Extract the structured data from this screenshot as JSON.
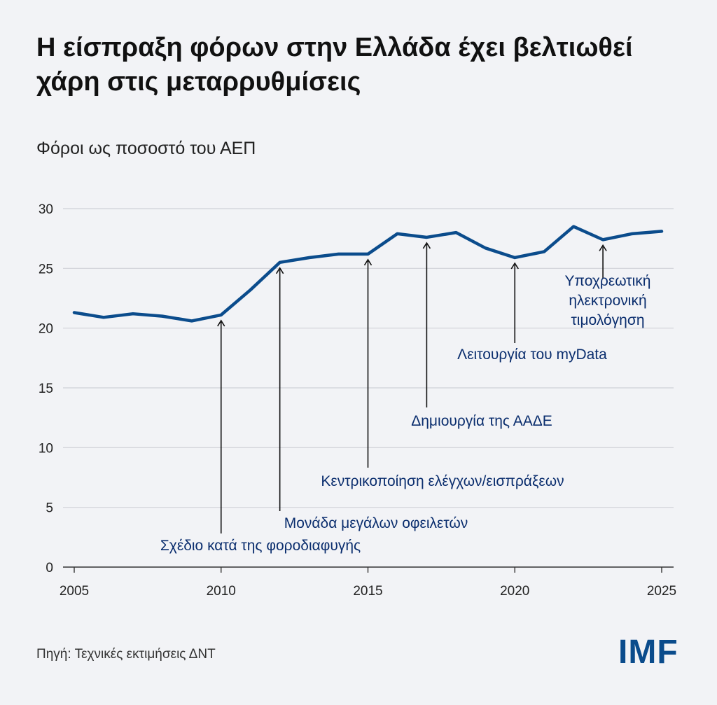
{
  "title": "Η είσπραξη φόρων στην Ελλάδα έχει βελτιωθεί χάρη στις μεταρρυθμίσεις",
  "source": "Πηγή: Τεχνικές εκτιμήσεις ΔΝΤ",
  "logo_text": "IMF",
  "colors": {
    "line": "#0b4c8c",
    "annotation_text": "#0b2e6e",
    "grid": "#cfd2d8",
    "background": "#f2f3f6"
  },
  "chart_data": {
    "type": "line",
    "ylabel": "Φόροι ως ποσοστό του ΑΕΠ",
    "xlim": [
      2005,
      2025
    ],
    "ylim": [
      0,
      30
    ],
    "x_ticks": [
      "2005",
      "2010",
      "2015",
      "2020",
      "2025"
    ],
    "y_ticks": [
      "0",
      "5",
      "10",
      "15",
      "20",
      "25",
      "30"
    ],
    "grid": "horizontal",
    "series": [
      {
        "x": [
          2005,
          2006,
          2007,
          2008,
          2009,
          2010,
          2011,
          2012,
          2013,
          2014,
          2015,
          2016,
          2017,
          2018,
          2019,
          2020,
          2021,
          2022,
          2023,
          2024,
          2025
        ],
        "values": [
          21.3,
          20.9,
          21.2,
          21.0,
          20.6,
          21.1,
          23.2,
          25.5,
          25.9,
          26.2,
          26.2,
          27.9,
          27.6,
          28.0,
          26.7,
          25.9,
          26.4,
          28.5,
          27.4,
          27.9,
          28.1
        ]
      }
    ],
    "annotations": [
      {
        "year": 2010,
        "lines": [
          "Σχέδιο κατά της φοροδιαφυγής"
        ]
      },
      {
        "year": 2012,
        "lines": [
          "Μονάδα μεγάλων οφειλετών"
        ]
      },
      {
        "year": 2015,
        "lines": [
          "Κεντρικοποίηση ελέγχων/εισπράξεων"
        ]
      },
      {
        "year": 2017,
        "lines": [
          "Δημιουργία της ΑΑΔΕ"
        ]
      },
      {
        "year": 2020,
        "lines": [
          "Λειτουργία του myData"
        ]
      },
      {
        "year": 2023,
        "lines": [
          "Υποχρεωτική",
          "ηλεκτρονική",
          "τιμολόγηση"
        ]
      }
    ]
  }
}
